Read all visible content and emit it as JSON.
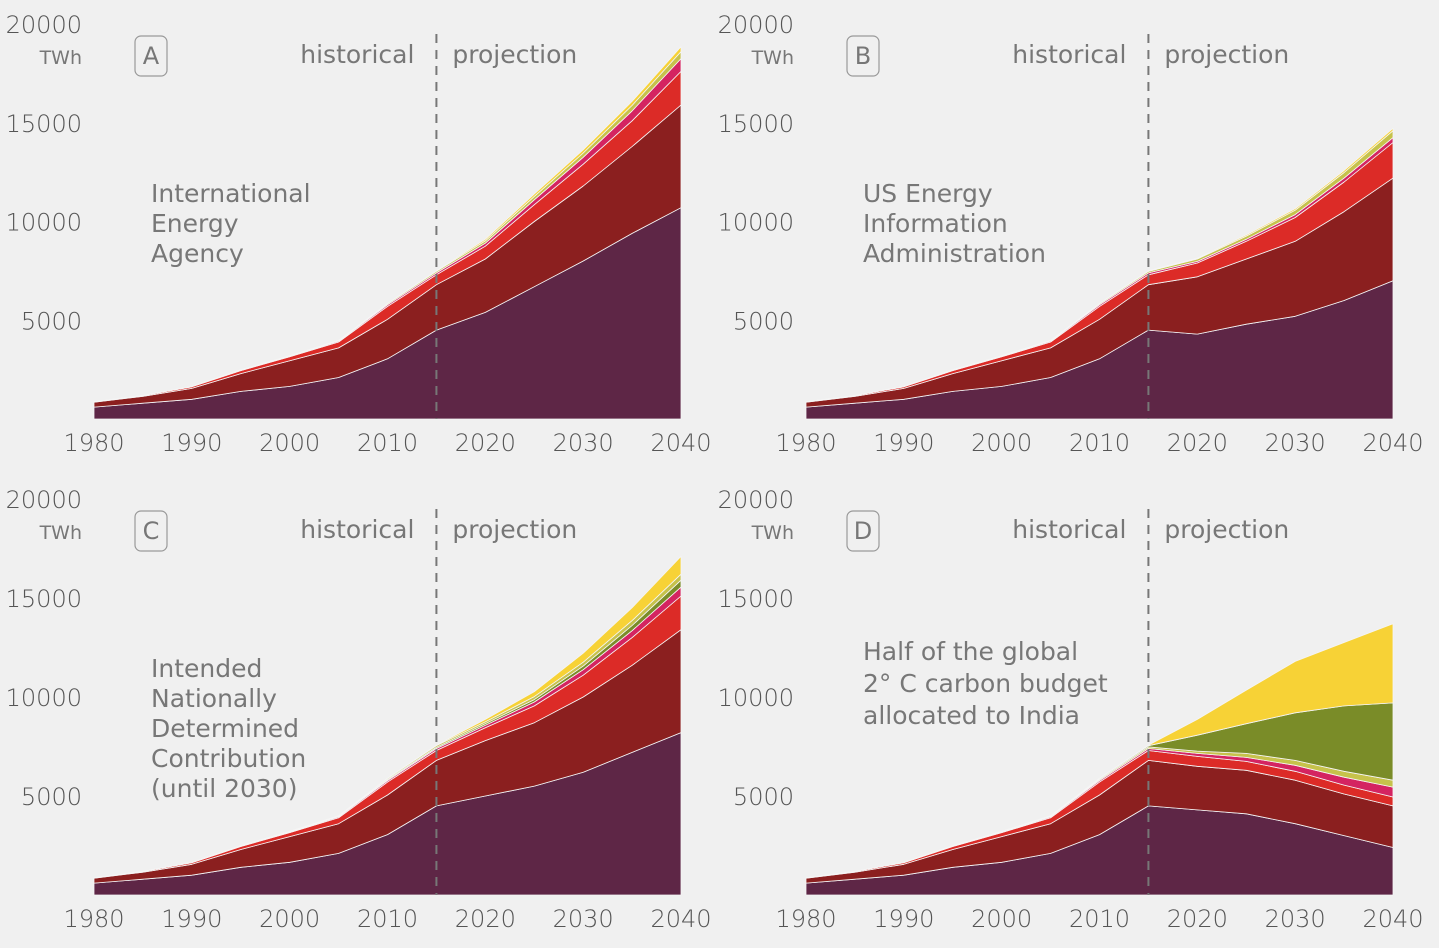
{
  "figure": {
    "background": "#f0f0f0",
    "series_colors": {
      "coal": "#5e2646",
      "gas": "#8b1f1f",
      "hydro": "#dc2b27",
      "nuclear": "#d42461",
      "wind": "#7a8c28",
      "bio": "#c6c24b",
      "solar": "#f7d236"
    },
    "divider_color": "#777777"
  },
  "chart_data": [
    {
      "type": "area",
      "panel_label": "A",
      "source_label": [
        "International",
        "Energy",
        "Agency"
      ],
      "historical_label": "historical",
      "projection_label": "projection",
      "unit_label": "TWh",
      "xlim": [
        1980,
        2040
      ],
      "ylim": [
        0,
        20000
      ],
      "x_ticks": [
        1980,
        1990,
        2000,
        2010,
        2020,
        2030,
        2040
      ],
      "y_ticks": [
        5000,
        10000,
        15000,
        20000
      ],
      "divider_x": 2015,
      "x": [
        1980,
        1985,
        1990,
        1995,
        2000,
        2005,
        2010,
        2015,
        2020,
        2025,
        2030,
        2035,
        2040
      ],
      "series": [
        {
          "color_key": "coal",
          "values": [
            600,
            800,
            1000,
            1400,
            1650,
            2100,
            3050,
            4500,
            5400,
            6700,
            8000,
            9400,
            10700
          ]
        },
        {
          "color_key": "gas",
          "values": [
            250,
            350,
            550,
            900,
            1300,
            1500,
            2000,
            2300,
            2700,
            3300,
            3800,
            4400,
            5200
          ]
        },
        {
          "color_key": "hydro",
          "values": [
            20,
            40,
            80,
            150,
            200,
            300,
            650,
            500,
            650,
            850,
            1100,
            1300,
            1700
          ]
        },
        {
          "color_key": "nuclear",
          "values": [
            0,
            0,
            10,
            20,
            30,
            50,
            80,
            100,
            150,
            250,
            350,
            500,
            650
          ]
        },
        {
          "color_key": "bio",
          "values": [
            0,
            0,
            10,
            20,
            20,
            30,
            60,
            80,
            120,
            170,
            220,
            280,
            350
          ]
        },
        {
          "color_key": "solar",
          "values": [
            0,
            0,
            0,
            0,
            0,
            0,
            10,
            30,
            80,
            120,
            160,
            200,
            250
          ]
        }
      ]
    },
    {
      "type": "area",
      "panel_label": "B",
      "source_label": [
        "US Energy",
        "Information",
        "Administration"
      ],
      "historical_label": "historical",
      "projection_label": "projection",
      "unit_label": "TWh",
      "xlim": [
        1980,
        2040
      ],
      "ylim": [
        0,
        20000
      ],
      "x_ticks": [
        1980,
        1990,
        2000,
        2010,
        2020,
        2030,
        2040
      ],
      "y_ticks": [
        5000,
        10000,
        15000,
        20000
      ],
      "divider_x": 2015,
      "x": [
        1980,
        1985,
        1990,
        1995,
        2000,
        2005,
        2010,
        2015,
        2020,
        2025,
        2030,
        2035,
        2040
      ],
      "series": [
        {
          "color_key": "coal",
          "values": [
            600,
            800,
            1000,
            1400,
            1650,
            2100,
            3050,
            4500,
            4300,
            4800,
            5200,
            6000,
            7000
          ]
        },
        {
          "color_key": "gas",
          "values": [
            250,
            350,
            550,
            900,
            1300,
            1500,
            2000,
            2300,
            2900,
            3300,
            3800,
            4500,
            5200
          ]
        },
        {
          "color_key": "hydro",
          "values": [
            20,
            40,
            80,
            150,
            200,
            300,
            650,
            500,
            700,
            900,
            1200,
            1500,
            1800
          ]
        },
        {
          "color_key": "nuclear",
          "values": [
            0,
            0,
            10,
            20,
            30,
            50,
            80,
            100,
            80,
            100,
            150,
            200,
            250
          ]
        },
        {
          "color_key": "bio",
          "values": [
            0,
            0,
            10,
            20,
            20,
            30,
            60,
            80,
            120,
            160,
            220,
            280,
            350
          ]
        },
        {
          "color_key": "solar",
          "values": [
            0,
            0,
            0,
            0,
            0,
            0,
            10,
            30,
            40,
            60,
            80,
            100,
            120
          ]
        }
      ]
    },
    {
      "type": "area",
      "panel_label": "C",
      "source_label": [
        "Intended",
        "Nationally",
        "Determined",
        "Contribution",
        "(until 2030)"
      ],
      "historical_label": "historical",
      "projection_label": "projection",
      "unit_label": "TWh",
      "xlim": [
        1980,
        2040
      ],
      "ylim": [
        0,
        20000
      ],
      "x_ticks": [
        1980,
        1990,
        2000,
        2010,
        2020,
        2030,
        2040
      ],
      "y_ticks": [
        5000,
        10000,
        15000,
        20000
      ],
      "divider_x": 2015,
      "x": [
        1980,
        1985,
        1990,
        1995,
        2000,
        2005,
        2010,
        2015,
        2020,
        2025,
        2030,
        2035,
        2040
      ],
      "series": [
        {
          "color_key": "coal",
          "values": [
            600,
            800,
            1000,
            1400,
            1650,
            2100,
            3050,
            4500,
            5000,
            5500,
            6200,
            7200,
            8200
          ]
        },
        {
          "color_key": "gas",
          "values": [
            250,
            350,
            550,
            900,
            1300,
            1500,
            2000,
            2300,
            2800,
            3200,
            3800,
            4400,
            5200
          ]
        },
        {
          "color_key": "hydro",
          "values": [
            20,
            40,
            80,
            150,
            200,
            300,
            650,
            500,
            650,
            850,
            1100,
            1400,
            1700
          ]
        },
        {
          "color_key": "nuclear",
          "values": [
            0,
            0,
            10,
            20,
            30,
            50,
            80,
            100,
            120,
            200,
            280,
            350,
            450
          ]
        },
        {
          "color_key": "wind",
          "values": [
            0,
            0,
            0,
            0,
            10,
            20,
            50,
            60,
            80,
            120,
            180,
            260,
            350
          ]
        },
        {
          "color_key": "bio",
          "values": [
            0,
            0,
            10,
            20,
            20,
            30,
            60,
            80,
            100,
            150,
            200,
            250,
            300
          ]
        },
        {
          "color_key": "solar",
          "values": [
            0,
            0,
            0,
            0,
            0,
            0,
            10,
            30,
            120,
            250,
            450,
            650,
            900
          ]
        }
      ]
    },
    {
      "type": "area",
      "panel_label": "D",
      "source_label": [
        "Half of the global",
        "2° C carbon budget",
        "allocated to India"
      ],
      "historical_label": "historical",
      "projection_label": "projection",
      "unit_label": "TWh",
      "xlim": [
        1980,
        2040
      ],
      "ylim": [
        0,
        20000
      ],
      "x_ticks": [
        1980,
        1990,
        2000,
        2010,
        2020,
        2030,
        2040
      ],
      "y_ticks": [
        5000,
        10000,
        15000,
        20000
      ],
      "divider_x": 2015,
      "x": [
        1980,
        1985,
        1990,
        1995,
        2000,
        2005,
        2010,
        2015,
        2020,
        2025,
        2030,
        2035,
        2040
      ],
      "series": [
        {
          "color_key": "coal",
          "values": [
            600,
            800,
            1000,
            1400,
            1650,
            2100,
            3050,
            4500,
            4300,
            4100,
            3600,
            3000,
            2400
          ]
        },
        {
          "color_key": "gas",
          "values": [
            250,
            350,
            550,
            900,
            1300,
            1500,
            2000,
            2300,
            2200,
            2200,
            2200,
            2100,
            2100
          ]
        },
        {
          "color_key": "hydro",
          "values": [
            20,
            40,
            80,
            150,
            200,
            300,
            650,
            500,
            500,
            450,
            450,
            450,
            450
          ]
        },
        {
          "color_key": "nuclear",
          "values": [
            0,
            0,
            10,
            20,
            30,
            50,
            80,
            100,
            150,
            200,
            300,
            400,
            500
          ]
        },
        {
          "color_key": "bio",
          "values": [
            0,
            0,
            10,
            20,
            20,
            30,
            60,
            80,
            120,
            200,
            250,
            300,
            350
          ]
        },
        {
          "color_key": "wind",
          "values": [
            0,
            0,
            0,
            0,
            10,
            20,
            50,
            60,
            800,
            1500,
            2400,
            3300,
            3900
          ]
        },
        {
          "color_key": "solar",
          "values": [
            0,
            0,
            0,
            0,
            0,
            0,
            10,
            30,
            800,
            1700,
            2600,
            3200,
            4000
          ]
        }
      ]
    }
  ]
}
